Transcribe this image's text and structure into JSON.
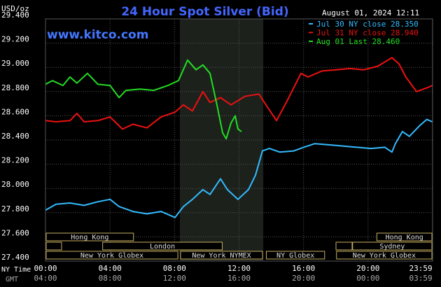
{
  "chart_data": {
    "type": "line",
    "title": "24 Hour Spot Silver (Bid)",
    "unit": "USD/oz",
    "timestamp": "August 01, 2024 12:11",
    "watermark": "www.kitco.com",
    "x_axis_label": "NY Time",
    "secondary_x_axis_label": "GMT",
    "xlim": [
      0,
      24
    ],
    "xticks": [
      {
        "value": 0,
        "label": "00:00"
      },
      {
        "value": 4,
        "label": "04:00"
      },
      {
        "value": 8,
        "label": "08:00"
      },
      {
        "value": 12,
        "label": "12:00"
      },
      {
        "value": 16,
        "label": "16:00"
      },
      {
        "value": 20,
        "label": "20:00"
      },
      {
        "value": 23.983,
        "label": "23:59"
      }
    ],
    "secondary_xtick_labels": [
      "04:00",
      "08:00",
      "12:00",
      "16:00",
      "20:00",
      "00:00",
      "03:59"
    ],
    "ylim": [
      27.4,
      29.4
    ],
    "yticks": [
      {
        "value": 27.4,
        "label": "27.400"
      },
      {
        "value": 27.6,
        "label": "27.600"
      },
      {
        "value": 27.8,
        "label": "27.800"
      },
      {
        "value": 28.0,
        "label": "28.000"
      },
      {
        "value": 28.2,
        "label": "28.200"
      },
      {
        "value": 28.4,
        "label": "28.400"
      },
      {
        "value": 28.6,
        "label": "28.600"
      },
      {
        "value": 28.8,
        "label": "28.800"
      },
      {
        "value": 29.0,
        "label": "29.000"
      },
      {
        "value": 29.2,
        "label": "29.200"
      },
      {
        "value": 29.4,
        "label": "29.400"
      }
    ],
    "grid": true,
    "shaded_range": [
      8.33,
      13.5
    ],
    "sessions": [
      {
        "label": "Hong Kong",
        "start": 0,
        "end": 5.5
      },
      {
        "label": "London",
        "start": 3.5,
        "end": 11
      },
      {
        "label": "New York Globex",
        "start": 0,
        "end": 8.25
      },
      {
        "label": "New York NYMEX",
        "start": 8.33,
        "end": 13.5
      },
      {
        "label": "NY Globex",
        "start": 13.65,
        "end": 17.35
      },
      {
        "label": "New York Globex",
        "start": 18,
        "end": 24
      },
      {
        "label": "Sydney",
        "start": 19,
        "end": 24
      },
      {
        "label": "Hong Kong",
        "start": 20.5,
        "end": 24
      }
    ],
    "series": [
      {
        "name": "Jul 30 NY close 28.350",
        "color": "#33bbff",
        "x": [
          0,
          0.65,
          1.52,
          2.39,
          3.25,
          4,
          4.56,
          5.42,
          6.29,
          7.16,
          8.03,
          8.55,
          9.11,
          9.76,
          10.2,
          10.85,
          11.28,
          11.93,
          12.58,
          13.02,
          13.45,
          13.88,
          14.53,
          15.4,
          16.0,
          16.7,
          17.57,
          18.44,
          19.31,
          20.17,
          21.04,
          21.48,
          21.69,
          22.13,
          22.56,
          23.21,
          23.64,
          23.98
        ],
        "values": [
          27.82,
          27.87,
          27.88,
          27.86,
          27.89,
          27.91,
          27.85,
          27.81,
          27.79,
          27.81,
          27.76,
          27.85,
          27.91,
          27.99,
          27.95,
          28.08,
          27.99,
          27.91,
          27.99,
          28.11,
          28.31,
          28.33,
          28.3,
          28.31,
          28.34,
          28.37,
          28.36,
          28.35,
          28.34,
          28.33,
          28.34,
          28.3,
          28.37,
          28.47,
          28.43,
          28.52,
          28.57,
          28.55
        ]
      },
      {
        "name": "Jul 31 NY close 28.940",
        "color": "#ee1111",
        "x": [
          0,
          0.65,
          1.52,
          1.95,
          2.39,
          3.25,
          4,
          4.77,
          5.42,
          6.29,
          7.16,
          8.03,
          8.55,
          9.11,
          9.76,
          10.2,
          10.85,
          11.5,
          12.36,
          13.23,
          13.67,
          14.32,
          14.97,
          15.84,
          16.27,
          17.14,
          18.01,
          18.87,
          19.74,
          20.61,
          21.48,
          21.91,
          22.34,
          23.0,
          23.64,
          23.98
        ],
        "values": [
          28.56,
          28.55,
          28.56,
          28.62,
          28.55,
          28.56,
          28.59,
          28.49,
          28.53,
          28.5,
          28.59,
          28.63,
          28.69,
          28.64,
          28.8,
          28.71,
          28.75,
          28.69,
          28.76,
          28.78,
          28.69,
          28.56,
          28.72,
          28.95,
          28.92,
          28.97,
          28.98,
          28.99,
          28.98,
          29.01,
          29.08,
          29.03,
          28.92,
          28.8,
          28.83,
          28.85
        ]
      },
      {
        "name": "Aug 01 Last 28.460",
        "color": "#22dd22",
        "x": [
          0,
          0.43,
          1.08,
          1.52,
          1.95,
          2.6,
          3.25,
          4,
          4.56,
          4.99,
          5.86,
          6.72,
          7.59,
          8.24,
          8.81,
          9.33,
          9.76,
          10.2,
          10.63,
          10.98,
          11.2,
          11.5,
          11.76,
          11.93,
          12.15
        ],
        "values": [
          28.86,
          28.89,
          28.85,
          28.92,
          28.87,
          28.95,
          28.86,
          28.85,
          28.75,
          28.81,
          28.82,
          28.81,
          28.85,
          28.89,
          29.06,
          28.98,
          29.02,
          28.95,
          28.69,
          28.46,
          28.41,
          28.54,
          28.6,
          28.49,
          28.47
        ]
      }
    ]
  }
}
